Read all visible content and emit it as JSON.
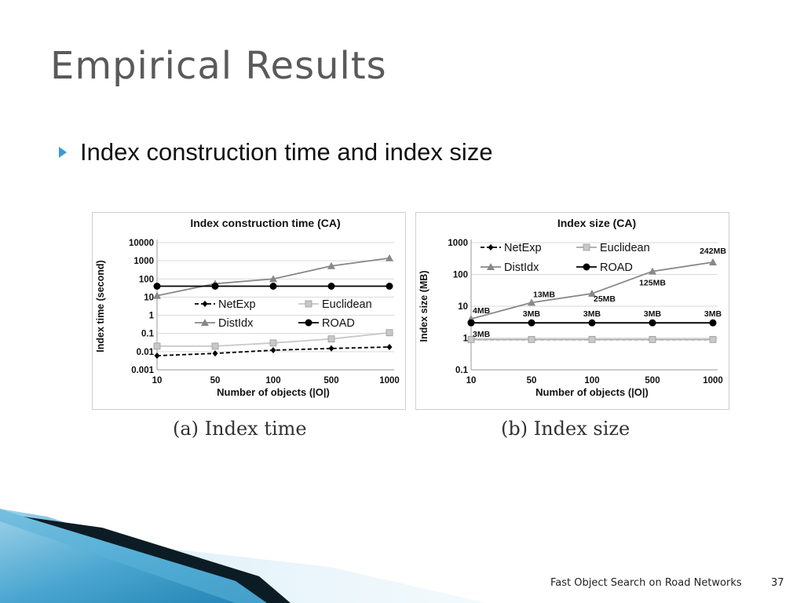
{
  "slide": {
    "title": "Empirical Results",
    "bullet": "Index construction time and index size",
    "footer": "Fast Object Search on Road Networks",
    "page_number": "37"
  },
  "captions": [
    "(a) Index time",
    "(b) Index size"
  ],
  "chart_data": [
    {
      "type": "line",
      "title": "Index construction time (CA)",
      "xlabel": "Number of objects (|O|)",
      "ylabel": "Index time (second)",
      "y_scale": "log",
      "ylim": [
        0.001,
        10000
      ],
      "y_ticks": [
        "0.001",
        "0.01",
        "0.1",
        "1",
        "10",
        "100",
        "1000",
        "10000"
      ],
      "categories": [
        "10",
        "50",
        "100",
        "500",
        "1000"
      ],
      "legend_position": "inside-center",
      "series": [
        {
          "name": "NetExp",
          "color": "#000000",
          "dashed": true,
          "marker": "diamond",
          "values": [
            0.006,
            0.008,
            0.012,
            0.015,
            0.018
          ]
        },
        {
          "name": "Euclidean",
          "color": "#c8c8c8",
          "dashed": false,
          "marker": "square",
          "values": [
            0.02,
            0.02,
            0.03,
            0.05,
            0.11
          ]
        },
        {
          "name": "DistIdx",
          "color": "#888888",
          "dashed": false,
          "marker": "triangle",
          "values": [
            12,
            55,
            100,
            520,
            1400
          ]
        },
        {
          "name": "ROAD",
          "color": "#000000",
          "dashed": false,
          "marker": "circle",
          "values": [
            40,
            40,
            40,
            40,
            40
          ]
        }
      ]
    },
    {
      "type": "line",
      "title": "Index size (CA)",
      "xlabel": "Number of objects (|O|)",
      "ylabel": "Index size (MB)",
      "y_scale": "log",
      "ylim": [
        0.1,
        1000
      ],
      "y_ticks": [
        "0.1",
        "1",
        "10",
        "100",
        "1000"
      ],
      "categories": [
        "10",
        "50",
        "100",
        "500",
        "1000"
      ],
      "legend_position": "top-left",
      "series": [
        {
          "name": "NetExp",
          "color": "#000000",
          "dashed": true,
          "marker": "diamond",
          "values": [
            0.9,
            0.9,
            0.9,
            0.9,
            0.9
          ]
        },
        {
          "name": "Euclidean",
          "color": "#a8a8a8",
          "dashed": false,
          "marker": "square",
          "values": [
            0.9,
            0.9,
            0.9,
            0.9,
            0.9
          ]
        },
        {
          "name": "DistIdx",
          "color": "#888888",
          "dashed": false,
          "marker": "triangle",
          "values": [
            4,
            13,
            25,
            125,
            242
          ]
        },
        {
          "name": "ROAD",
          "color": "#000000",
          "dashed": false,
          "marker": "circle",
          "values": [
            3,
            3,
            3,
            3,
            3
          ]
        }
      ],
      "annotations": [
        {
          "text": "4MB",
          "x": "10",
          "y": 4,
          "anchor": "start",
          "dy": -7
        },
        {
          "text": "13MB",
          "x": "50",
          "y": 13,
          "anchor": "start",
          "dy": -7
        },
        {
          "text": "25MB",
          "x": "100",
          "y": 25,
          "anchor": "start",
          "dy": 10
        },
        {
          "text": "125MB",
          "x": "500",
          "y": 125,
          "anchor": "middle",
          "dy": 18
        },
        {
          "text": "242MB",
          "x": "1000",
          "y": 242,
          "anchor": "middle",
          "dy": -11
        },
        {
          "text": "3MB",
          "x": "10",
          "y": 3,
          "anchor": "start",
          "dy": 18
        },
        {
          "text": "3MB",
          "x": "50",
          "y": 3,
          "anchor": "middle",
          "dy": -8
        },
        {
          "text": "3MB",
          "x": "100",
          "y": 3,
          "anchor": "middle",
          "dy": -8
        },
        {
          "text": "3MB",
          "x": "500",
          "y": 3,
          "anchor": "middle",
          "dy": -8
        },
        {
          "text": "3MB",
          "x": "1000",
          "y": 3,
          "anchor": "middle",
          "dy": -8
        }
      ]
    }
  ],
  "colors": {
    "title": "#5a5a5a",
    "bullet_arrow": "#3a9ad6",
    "deco_blue_light": "#9fd3ea",
    "deco_blue": "#1f7fb0",
    "deco_dark": "#0c1c24"
  },
  "icons": {
    "bullet": "triangle-right-icon"
  }
}
